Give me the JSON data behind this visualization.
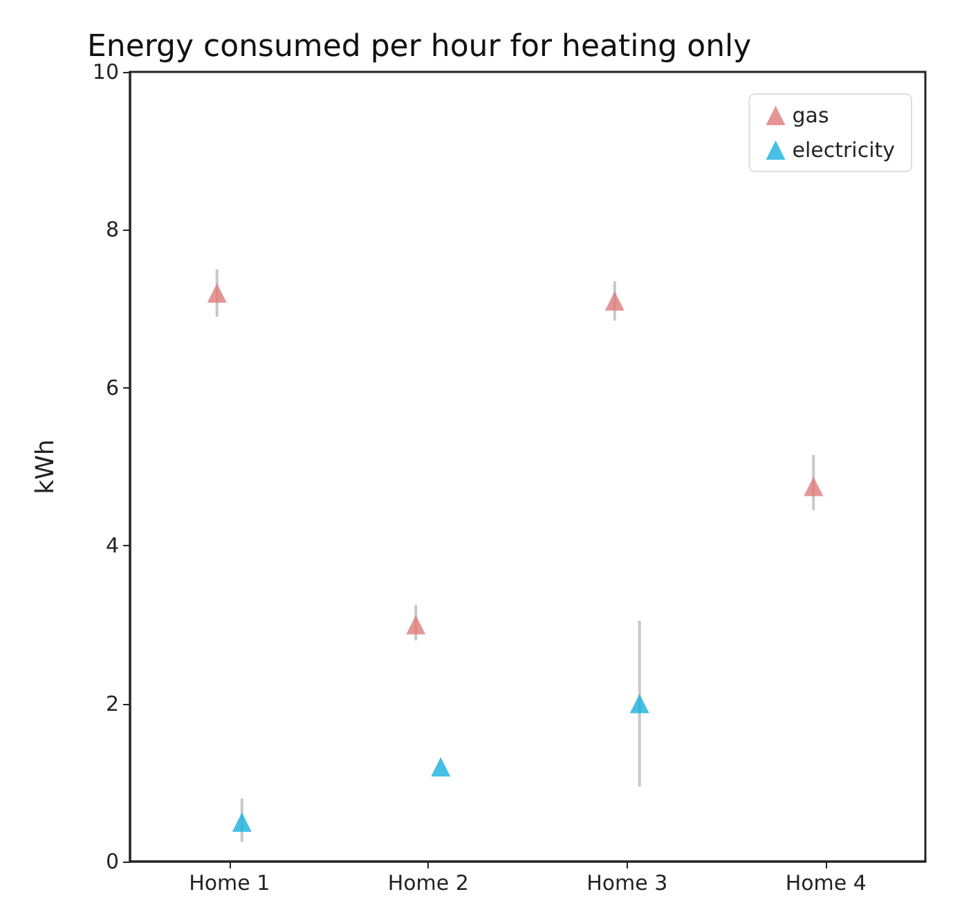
{
  "chart_data": {
    "type": "scatter",
    "title": "Energy consumed per hour for heating only",
    "ylabel": "kWh",
    "categories": [
      "Home 1",
      "Home 2",
      "Home 3",
      "Home 4"
    ],
    "series": [
      {
        "name": "gas",
        "color": "#e07b7b",
        "values": [
          7.2,
          3.0,
          7.1,
          4.75
        ],
        "errors": [
          [
            6.9,
            7.5
          ],
          [
            2.8,
            3.25
          ],
          [
            6.85,
            7.35
          ],
          [
            4.45,
            5.15
          ]
        ]
      },
      {
        "name": "electricity",
        "color": "#1ab0e0",
        "values": [
          0.5,
          1.2,
          2.0,
          null
        ],
        "errors": [
          [
            0.25,
            0.8
          ],
          null,
          [
            0.95,
            3.05
          ],
          null
        ]
      }
    ],
    "ylim": [
      0,
      10
    ],
    "yticks": [
      0,
      2,
      4,
      6,
      8,
      10
    ],
    "grid": false,
    "legend": "top right",
    "marker": "triangle"
  }
}
